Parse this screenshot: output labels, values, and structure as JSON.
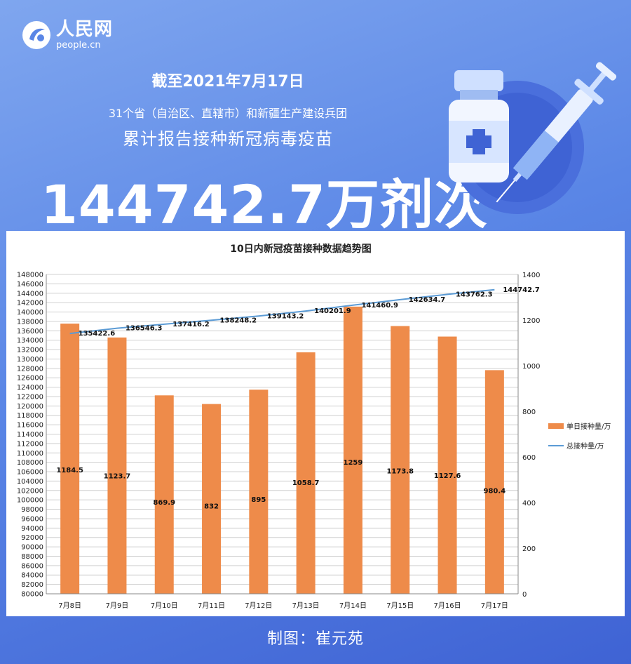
{
  "header": {
    "logo_cn": "人民网",
    "logo_en": "people.cn",
    "date_line": "截至2021年7月17日",
    "subtitle1": "31个省（自治区、直辖市）和新疆生产建设兵团",
    "subtitle2": "累计报告接种新冠病毒疫苗",
    "big_number": "144742.7万剂次"
  },
  "credit": "制图：崔元苑",
  "colors": {
    "bar": "#ee8b4a",
    "line": "#5b9bd5",
    "background": "#5a86e6"
  },
  "icons": {
    "logo": "people-cn-logo-icon",
    "vaccine": "vaccine-vial-syringe-icon"
  },
  "chart_data": {
    "type": "bar+line",
    "title": "10日内新冠疫苗接种数据趋势图",
    "categories": [
      "7月8日",
      "7月9日",
      "7月10日",
      "7月11日",
      "7月12日",
      "7月13日",
      "7月14日",
      "7月15日",
      "7月16日",
      "7月17日"
    ],
    "series": [
      {
        "name": "单日接种量/万",
        "type": "bar",
        "axis": "right",
        "values": [
          1184.5,
          1123.7,
          869.9,
          832,
          895,
          1058.7,
          1259,
          1173.8,
          1127.6,
          980.4
        ]
      },
      {
        "name": "总接种量/万",
        "type": "line",
        "axis": "left",
        "values": [
          135422.6,
          136546.3,
          137416.2,
          138248.2,
          139143.2,
          140201.9,
          141460.9,
          142634.7,
          143762.3,
          144742.7
        ]
      }
    ],
    "y_left": {
      "min": 80000,
      "max": 148000,
      "step": 2000
    },
    "y_right": {
      "min": 0,
      "max": 1400,
      "step": 200
    },
    "gridlines": true,
    "legend_position": "right"
  }
}
